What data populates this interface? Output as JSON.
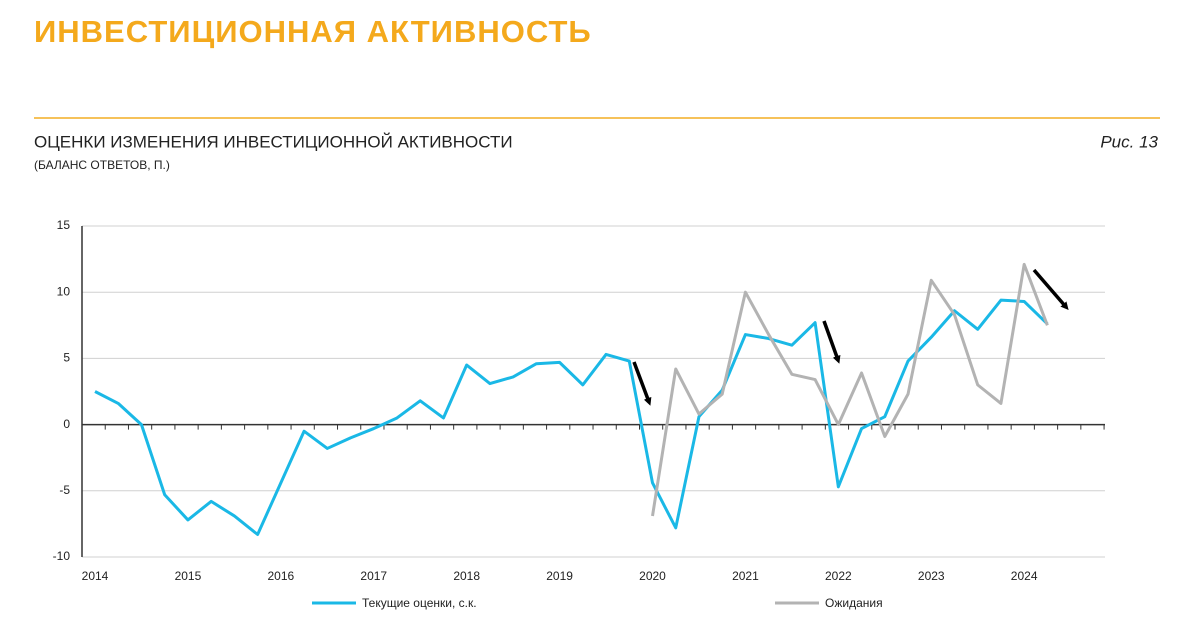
{
  "header": {
    "title": "ИНВЕСТИЦИОННАЯ АКТИВНОСТЬ"
  },
  "chart_data": {
    "type": "line",
    "title": "ОЦЕНКИ ИЗМЕНЕНИЯ ИНВЕСТИЦИОННОЙ АКТИВНОСТИ",
    "subtitle": "(БАЛАНС ОТВЕТОВ, П.)",
    "figure_label": "Рис. 13",
    "x": [
      2014,
      2014.25,
      2014.5,
      2014.75,
      2015,
      2015.25,
      2015.5,
      2015.75,
      2016,
      2016.25,
      2016.5,
      2016.75,
      2017,
      2017.25,
      2017.5,
      2017.75,
      2018,
      2018.25,
      2018.5,
      2018.75,
      2019,
      2019.25,
      2019.5,
      2019.75,
      2020,
      2020.25,
      2020.5,
      2020.75,
      2021,
      2021.25,
      2021.5,
      2021.75,
      2022,
      2022.25,
      2022.5,
      2022.75,
      2023,
      2023.25,
      2023.5,
      2023.75,
      2024,
      2024.25
    ],
    "series": [
      {
        "name": "Текущие оценки, с.к.",
        "color": "#1ab8e6",
        "values": [
          2.5,
          1.6,
          0,
          -5.3,
          -7.2,
          -5.8,
          -6.9,
          -8.3,
          -4.4,
          -0.5,
          -1.8,
          -1.0,
          -0.3,
          0.5,
          1.8,
          0.5,
          4.5,
          3.1,
          3.6,
          4.6,
          4.7,
          3.0,
          5.3,
          4.8,
          -4.4,
          -7.8,
          0.6,
          2.6,
          6.8,
          6.5,
          6.0,
          7.7,
          -4.7,
          -0.3,
          0.6,
          4.8,
          6.6,
          8.6,
          7.2,
          9.4,
          9.3,
          7.6
        ]
      },
      {
        "name": "Ожидания",
        "color": "#b3b3b3",
        "values": [
          null,
          null,
          null,
          null,
          null,
          null,
          null,
          null,
          null,
          null,
          null,
          null,
          null,
          null,
          null,
          null,
          null,
          null,
          null,
          null,
          null,
          null,
          null,
          null,
          -6.9,
          4.2,
          0.8,
          2.3,
          10.0,
          6.8,
          3.8,
          3.4,
          0.0,
          3.9,
          -0.9,
          2.3,
          10.9,
          8.3,
          3.0,
          1.6,
          12.1,
          7.5
        ]
      }
    ],
    "xlim": [
      2013.86,
      2024.87
    ],
    "xticks": [
      2014,
      2015,
      2016,
      2017,
      2018,
      2019,
      2020,
      2021,
      2022,
      2023,
      2024
    ],
    "ylim": [
      -10,
      15
    ],
    "yticks": [
      15,
      10,
      5,
      0,
      -5,
      -10
    ],
    "grid": true
  }
}
